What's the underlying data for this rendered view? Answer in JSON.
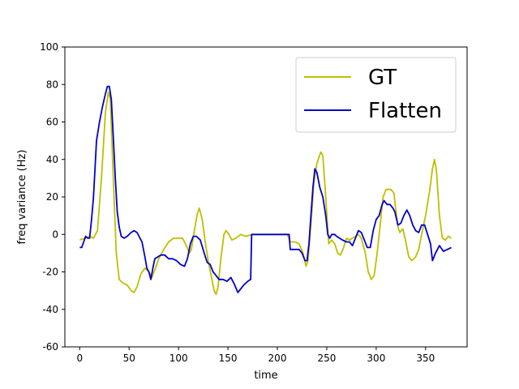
{
  "chart_data": {
    "type": "line",
    "title": "",
    "xlabel": "time",
    "ylabel": "freq variance (Hz)",
    "xlim": [
      -15,
      392
    ],
    "ylim": [
      -60,
      100
    ],
    "xticks": [
      0,
      50,
      100,
      150,
      200,
      250,
      300,
      350
    ],
    "yticks": [
      -60,
      -40,
      -20,
      0,
      20,
      40,
      60,
      80,
      100
    ],
    "grid": false,
    "legend": "top-right",
    "series": [
      {
        "name": "GT",
        "color": "#bfbf00",
        "points": [
          [
            0,
            -3
          ],
          [
            5,
            -2
          ],
          [
            10,
            -1
          ],
          [
            14,
            -2
          ],
          [
            18,
            2
          ],
          [
            22,
            30
          ],
          [
            26,
            65
          ],
          [
            29,
            76
          ],
          [
            31,
            72
          ],
          [
            34,
            30
          ],
          [
            37,
            -10
          ],
          [
            40,
            -24
          ],
          [
            44,
            -26
          ],
          [
            48,
            -27
          ],
          [
            52,
            -30
          ],
          [
            55,
            -31
          ],
          [
            58,
            -28
          ],
          [
            62,
            -21
          ],
          [
            66,
            -18
          ],
          [
            70,
            -20
          ],
          [
            73,
            -23
          ],
          [
            76,
            -19
          ],
          [
            80,
            -13
          ],
          [
            85,
            -8
          ],
          [
            90,
            -4
          ],
          [
            95,
            -2
          ],
          [
            100,
            -2
          ],
          [
            104,
            -2
          ],
          [
            108,
            -6
          ],
          [
            111,
            -10
          ],
          [
            113,
            -8
          ],
          [
            116,
            2
          ],
          [
            119,
            11
          ],
          [
            121,
            14
          ],
          [
            124,
            8
          ],
          [
            127,
            -4
          ],
          [
            130,
            -14
          ],
          [
            133,
            -22
          ],
          [
            136,
            -30
          ],
          [
            138,
            -32
          ],
          [
            140,
            -28
          ],
          [
            143,
            -12
          ],
          [
            146,
            0
          ],
          [
            148,
            2
          ],
          [
            151,
            0
          ],
          [
            154,
            -3
          ],
          [
            158,
            -2
          ],
          [
            163,
            0
          ],
          [
            168,
            -1
          ],
          [
            175,
            0
          ],
          [
            185,
            0
          ],
          [
            200,
            0
          ],
          [
            210,
            0
          ],
          [
            213,
            -4
          ],
          [
            218,
            -4
          ],
          [
            222,
            -5
          ],
          [
            226,
            -10
          ],
          [
            229,
            -17
          ],
          [
            231,
            -14
          ],
          [
            234,
            5
          ],
          [
            237,
            28
          ],
          [
            240,
            38
          ],
          [
            244,
            44
          ],
          [
            246,
            42
          ],
          [
            249,
            20
          ],
          [
            252,
            -5
          ],
          [
            255,
            -3
          ],
          [
            258,
            -5
          ],
          [
            261,
            -10
          ],
          [
            264,
            -11
          ],
          [
            267,
            -7
          ],
          [
            270,
            -2
          ],
          [
            273,
            -3
          ],
          [
            276,
            -2
          ],
          [
            279,
            -1
          ],
          [
            282,
            0
          ],
          [
            285,
            -2
          ],
          [
            289,
            -10
          ],
          [
            292,
            -20
          ],
          [
            295,
            -24
          ],
          [
            298,
            -22
          ],
          [
            301,
            -10
          ],
          [
            304,
            5
          ],
          [
            307,
            20
          ],
          [
            310,
            24
          ],
          [
            315,
            24
          ],
          [
            318,
            22
          ],
          [
            320,
            12
          ],
          [
            322,
            4
          ],
          [
            324,
            1
          ],
          [
            327,
            3
          ],
          [
            330,
            -4
          ],
          [
            333,
            -12
          ],
          [
            336,
            -14
          ],
          [
            340,
            -12
          ],
          [
            343,
            -8
          ],
          [
            346,
            0
          ],
          [
            350,
            10
          ],
          [
            354,
            23
          ],
          [
            357,
            35
          ],
          [
            359,
            40
          ],
          [
            361,
            34
          ],
          [
            364,
            10
          ],
          [
            367,
            -2
          ],
          [
            370,
            -3
          ],
          [
            373,
            -1
          ],
          [
            376,
            -2
          ]
        ]
      },
      {
        "name": "Flatten",
        "color": "#0000cc",
        "points": [
          [
            0,
            -7
          ],
          [
            2,
            -7
          ],
          [
            4,
            -4
          ],
          [
            6,
            -1
          ],
          [
            8,
            -2
          ],
          [
            10,
            -2
          ],
          [
            12,
            8
          ],
          [
            14,
            20
          ],
          [
            17,
            50
          ],
          [
            20,
            60
          ],
          [
            23,
            68
          ],
          [
            26,
            75
          ],
          [
            28,
            79
          ],
          [
            30,
            79
          ],
          [
            32,
            72
          ],
          [
            34,
            52
          ],
          [
            36,
            30
          ],
          [
            38,
            12
          ],
          [
            40,
            4
          ],
          [
            42,
            -1
          ],
          [
            45,
            -2
          ],
          [
            48,
            -1
          ],
          [
            52,
            1
          ],
          [
            55,
            2
          ],
          [
            58,
            1
          ],
          [
            61,
            -2
          ],
          [
            63,
            -4
          ],
          [
            66,
            -12
          ],
          [
            68,
            -18
          ],
          [
            70,
            -20
          ],
          [
            72,
            -24
          ],
          [
            74,
            -18
          ],
          [
            76,
            -13
          ],
          [
            79,
            -12
          ],
          [
            82,
            -11
          ],
          [
            86,
            -11
          ],
          [
            90,
            -13
          ],
          [
            94,
            -13
          ],
          [
            98,
            -14
          ],
          [
            102,
            -16
          ],
          [
            106,
            -17
          ],
          [
            109,
            -13
          ],
          [
            112,
            -5
          ],
          [
            115,
            -1
          ],
          [
            118,
            -1
          ],
          [
            122,
            -3
          ],
          [
            126,
            -10
          ],
          [
            129,
            -15
          ],
          [
            132,
            -16
          ],
          [
            135,
            -20
          ],
          [
            138,
            -22
          ],
          [
            141,
            -24
          ],
          [
            145,
            -24
          ],
          [
            149,
            -25
          ],
          [
            153,
            -23
          ],
          [
            156,
            -26
          ],
          [
            160,
            -31
          ],
          [
            163,
            -29
          ],
          [
            166,
            -27
          ],
          [
            170,
            -25
          ],
          [
            173,
            -24
          ],
          [
            174,
            0
          ],
          [
            180,
            0
          ],
          [
            190,
            0
          ],
          [
            200,
            0
          ],
          [
            210,
            0
          ],
          [
            212,
            0
          ],
          [
            213,
            -8
          ],
          [
            218,
            -8
          ],
          [
            222,
            -8
          ],
          [
            225,
            -10
          ],
          [
            228,
            -14
          ],
          [
            230,
            -14
          ],
          [
            232,
            -5
          ],
          [
            234,
            10
          ],
          [
            236,
            25
          ],
          [
            238,
            35
          ],
          [
            240,
            33
          ],
          [
            243,
            25
          ],
          [
            246,
            20
          ],
          [
            249,
            10
          ],
          [
            251,
            0
          ],
          [
            253,
            -2
          ],
          [
            255,
            0
          ],
          [
            258,
            0
          ],
          [
            260,
            -1
          ],
          [
            263,
            -2
          ],
          [
            266,
            -3
          ],
          [
            270,
            -4
          ],
          [
            273,
            -4
          ],
          [
            276,
            -6
          ],
          [
            279,
            -2
          ],
          [
            282,
            2
          ],
          [
            285,
            1
          ],
          [
            288,
            -3
          ],
          [
            291,
            -7
          ],
          [
            294,
            -7
          ],
          [
            297,
            2
          ],
          [
            300,
            8
          ],
          [
            303,
            10
          ],
          [
            306,
            16
          ],
          [
            308,
            18
          ],
          [
            311,
            16
          ],
          [
            314,
            16
          ],
          [
            317,
            14
          ],
          [
            319,
            12
          ],
          [
            322,
            5
          ],
          [
            325,
            6
          ],
          [
            328,
            10
          ],
          [
            331,
            13
          ],
          [
            334,
            10
          ],
          [
            337,
            5
          ],
          [
            340,
            2
          ],
          [
            343,
            1
          ],
          [
            346,
            5
          ],
          [
            349,
            5
          ],
          [
            352,
            0
          ],
          [
            355,
            -5
          ],
          [
            357,
            -14
          ],
          [
            360,
            -10
          ],
          [
            364,
            -6
          ],
          [
            368,
            -9
          ],
          [
            372,
            -8
          ],
          [
            376,
            -7
          ]
        ]
      }
    ]
  }
}
